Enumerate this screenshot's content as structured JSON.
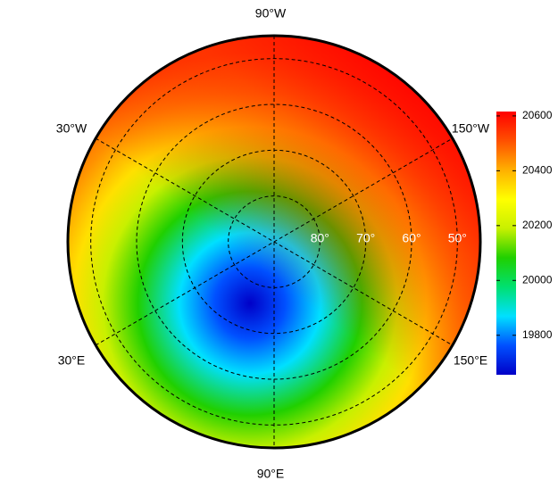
{
  "map": {
    "projection": "polar",
    "latlim": [
      45,
      90
    ],
    "lon_labels": [
      "90°W",
      "30°W",
      "150°W",
      "30°E",
      "150°E",
      "90°E"
    ],
    "lat_circles": [
      {
        "value": 80,
        "label": "80°"
      },
      {
        "value": 70,
        "label": "70°"
      },
      {
        "value": 60,
        "label": "60°"
      },
      {
        "value": 50,
        "label": "50°"
      }
    ],
    "colorbar": {
      "lim": [
        19656,
        20616
      ],
      "ticks": [
        19800,
        20000,
        20200,
        20400,
        20600
      ],
      "colors": [
        "#0000c8",
        "#0050ff",
        "#00e0ff",
        "#00e070",
        "#20d000",
        "#c8f000",
        "#ffff00",
        "#ffb000",
        "#ff5000",
        "#ff0000"
      ]
    }
  }
}
